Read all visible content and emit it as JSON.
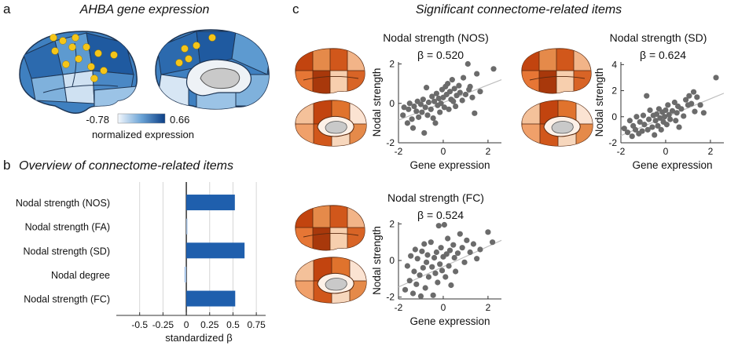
{
  "panel_a": {
    "letter": "a",
    "title": "AHBA gene expression",
    "colorbar_min": "-0.78",
    "colorbar_max": "0.66",
    "colorbar_label": "normalized expression",
    "colors": {
      "low": "#f3f7fc",
      "high": "#0c3f86",
      "dot": "#f5c518"
    }
  },
  "panel_b": {
    "letter": "b",
    "title": "Overview of connectome-related items"
  },
  "panel_c": {
    "letter": "c",
    "title": "Significant connectome-related items",
    "scatter_xlabel": "Gene expression",
    "scatter_ylabel": "Nodal strength",
    "colors": {
      "brain_high": "#c2440f",
      "brain_low": "#fbe3d2",
      "dot": "#6b6b6b",
      "fit": "#bdbdbd"
    }
  },
  "chart_data": [
    {
      "id": "overview",
      "type": "bar",
      "orientation": "horizontal",
      "categories": [
        "Nodal strength (NOS)",
        "Nodal strength (FA)",
        "Nodal strength (SD)",
        "Nodal degree",
        "Nodal strength (FC)"
      ],
      "values": [
        0.52,
        0.003,
        0.624,
        -0.02,
        0.524
      ],
      "xlabel": "standardized β",
      "xlim": [
        -0.75,
        0.85
      ],
      "xticks": [
        "-0.5",
        "-0.25",
        "0",
        "0.25",
        "0.5",
        "0.75"
      ],
      "grid": "vertical",
      "color": "#1f5fad"
    },
    {
      "id": "nos",
      "type": "scatter",
      "title": "Nodal strength (NOS)",
      "annotation": "β = 0.520",
      "xlabel": "Gene expression",
      "ylabel": "Nodal strength",
      "xlim": [
        -2,
        2.6
      ],
      "ylim": [
        -2,
        2.1
      ],
      "xticks": [
        "-2",
        "0",
        "2"
      ],
      "yticks": [
        "-2",
        "0",
        "2"
      ],
      "fit": [
        [
          -2,
          -0.85
        ],
        [
          2.6,
          1.2
        ]
      ],
      "points": [
        [
          -1.8,
          -0.6
        ],
        [
          -1.75,
          -0.2
        ],
        [
          -1.6,
          -1.0
        ],
        [
          -1.55,
          -0.3
        ],
        [
          -1.5,
          0.0
        ],
        [
          -1.4,
          -0.8
        ],
        [
          -1.35,
          -1.25
        ],
        [
          -1.3,
          -0.15
        ],
        [
          -1.2,
          -0.4
        ],
        [
          -1.15,
          0.1
        ],
        [
          -1.1,
          -0.7
        ],
        [
          -1.0,
          -0.05
        ],
        [
          -0.95,
          -0.45
        ],
        [
          -0.9,
          0.2
        ],
        [
          -0.85,
          -1.5
        ],
        [
          -0.8,
          -0.2
        ],
        [
          -0.75,
          0.8
        ],
        [
          -0.7,
          -0.6
        ],
        [
          -0.65,
          0.05
        ],
        [
          -0.55,
          -0.3
        ],
        [
          -0.5,
          0.35
        ],
        [
          -0.45,
          -0.75
        ],
        [
          -0.4,
          0.1
        ],
        [
          -0.35,
          -1.0
        ],
        [
          -0.3,
          0.5
        ],
        [
          -0.25,
          -0.1
        ],
        [
          -0.2,
          0.25
        ],
        [
          -0.15,
          -0.45
        ],
        [
          -0.1,
          0.0
        ],
        [
          -0.05,
          0.7
        ],
        [
          0.0,
          0.3
        ],
        [
          0.05,
          -0.2
        ],
        [
          0.1,
          0.85
        ],
        [
          0.15,
          0.45
        ],
        [
          0.2,
          1.0
        ],
        [
          0.25,
          -0.3
        ],
        [
          0.3,
          0.6
        ],
        [
          0.35,
          0.2
        ],
        [
          0.4,
          1.2
        ],
        [
          0.45,
          0.1
        ],
        [
          0.5,
          0.75
        ],
        [
          0.55,
          -0.15
        ],
        [
          0.6,
          0.4
        ],
        [
          0.7,
          0.9
        ],
        [
          0.75,
          0.55
        ],
        [
          0.85,
          0.15
        ],
        [
          0.9,
          1.3
        ],
        [
          1.0,
          0.45
        ],
        [
          1.1,
          2.0
        ],
        [
          1.15,
          0.7
        ],
        [
          1.2,
          0.85
        ],
        [
          1.3,
          0.3
        ],
        [
          1.4,
          -0.5
        ],
        [
          1.5,
          1.5
        ],
        [
          1.65,
          0.6
        ],
        [
          2.25,
          1.75
        ]
      ]
    },
    {
      "id": "sd",
      "type": "scatter",
      "title": "Nodal strength (SD)",
      "annotation": "β = 0.624",
      "xlabel": "Gene expression",
      "ylabel": "Nodal strength",
      "xlim": [
        -2,
        2.6
      ],
      "ylim": [
        -2,
        4.2
      ],
      "xticks": [
        "-2",
        "0",
        "2"
      ],
      "yticks": [
        "-2",
        "0",
        "2",
        "4"
      ],
      "fit": [
        [
          -2,
          -1.45
        ],
        [
          2.6,
          1.8
        ]
      ],
      "points": [
        [
          -1.85,
          -0.9
        ],
        [
          -1.7,
          -1.2
        ],
        [
          -1.6,
          -0.3
        ],
        [
          -1.5,
          -1.5
        ],
        [
          -1.45,
          -0.7
        ],
        [
          -1.35,
          -1.0
        ],
        [
          -1.3,
          0.0
        ],
        [
          -1.2,
          -1.3
        ],
        [
          -1.15,
          -0.4
        ],
        [
          -1.05,
          -1.1
        ],
        [
          -1.0,
          0.1
        ],
        [
          -0.95,
          -0.6
        ],
        [
          -0.85,
          1.6
        ],
        [
          -0.8,
          -1.0
        ],
        [
          -0.75,
          -0.2
        ],
        [
          -0.7,
          0.5
        ],
        [
          -0.6,
          -0.8
        ],
        [
          -0.55,
          0.1
        ],
        [
          -0.5,
          -1.4
        ],
        [
          -0.45,
          -0.3
        ],
        [
          -0.4,
          0.2
        ],
        [
          -0.35,
          -0.7
        ],
        [
          -0.3,
          0.6
        ],
        [
          -0.25,
          -0.1
        ],
        [
          -0.2,
          -1.0
        ],
        [
          -0.15,
          0.35
        ],
        [
          -0.1,
          -0.4
        ],
        [
          -0.05,
          0.0
        ],
        [
          0.0,
          0.5
        ],
        [
          0.05,
          -0.6
        ],
        [
          0.1,
          0.9
        ],
        [
          0.15,
          0.15
        ],
        [
          0.2,
          -0.2
        ],
        [
          0.3,
          0.45
        ],
        [
          0.4,
          1.1
        ],
        [
          0.45,
          -0.3
        ],
        [
          0.5,
          0.3
        ],
        [
          0.55,
          0.8
        ],
        [
          0.6,
          -0.8
        ],
        [
          0.7,
          0.6
        ],
        [
          0.8,
          0.05
        ],
        [
          0.9,
          1.3
        ],
        [
          1.0,
          0.9
        ],
        [
          1.05,
          1.6
        ],
        [
          1.15,
          1.0
        ],
        [
          1.25,
          1.9
        ],
        [
          1.3,
          0.4
        ],
        [
          1.4,
          1.5
        ],
        [
          1.55,
          0.9
        ],
        [
          1.7,
          0.3
        ],
        [
          2.25,
          3.0
        ]
      ]
    },
    {
      "id": "fc",
      "type": "scatter",
      "title": "Nodal strength (FC)",
      "annotation": "β = 0.524",
      "xlabel": "Gene expression",
      "ylabel": "Nodal strength",
      "xlim": [
        -2,
        2.6
      ],
      "ylim": [
        -2.1,
        2.1
      ],
      "xticks": [
        "-2",
        "0",
        "2"
      ],
      "yticks": [
        "-2",
        "0",
        "2"
      ],
      "fit": [
        [
          -2,
          -1.45
        ],
        [
          2.6,
          1.1
        ]
      ],
      "points": [
        [
          -1.7,
          -1.6
        ],
        [
          -1.6,
          -0.3
        ],
        [
          -1.5,
          -1.1
        ],
        [
          -1.45,
          0.25
        ],
        [
          -1.35,
          -1.8
        ],
        [
          -1.3,
          -0.6
        ],
        [
          -1.25,
          0.6
        ],
        [
          -1.2,
          -1.3
        ],
        [
          -1.15,
          0.1
        ],
        [
          -1.05,
          -0.8
        ],
        [
          -1.0,
          -1.95
        ],
        [
          -0.95,
          0.5
        ],
        [
          -0.9,
          -0.4
        ],
        [
          -0.85,
          0.9
        ],
        [
          -0.8,
          -1.5
        ],
        [
          -0.75,
          -0.1
        ],
        [
          -0.7,
          0.3
        ],
        [
          -0.65,
          -0.9
        ],
        [
          -0.55,
          1.0
        ],
        [
          -0.5,
          -0.35
        ],
        [
          -0.45,
          -1.9
        ],
        [
          -0.4,
          0.15
        ],
        [
          -0.35,
          -0.7
        ],
        [
          -0.3,
          0.45
        ],
        [
          -0.25,
          -1.2
        ],
        [
          -0.2,
          1.9
        ],
        [
          -0.15,
          -0.2
        ],
        [
          -0.1,
          0.7
        ],
        [
          -0.05,
          -0.55
        ],
        [
          0.0,
          0.2
        ],
        [
          0.05,
          1.95
        ],
        [
          0.1,
          -0.9
        ],
        [
          0.15,
          0.35
        ],
        [
          0.2,
          1.2
        ],
        [
          0.25,
          -0.3
        ],
        [
          0.3,
          0.55
        ],
        [
          0.35,
          -1.35
        ],
        [
          0.45,
          0.85
        ],
        [
          0.5,
          0.15
        ],
        [
          0.55,
          -0.6
        ],
        [
          0.65,
          0.4
        ],
        [
          0.75,
          1.45
        ],
        [
          0.85,
          0.7
        ],
        [
          0.95,
          -0.1
        ],
        [
          1.05,
          1.1
        ],
        [
          1.2,
          0.45
        ],
        [
          1.35,
          0.9
        ],
        [
          1.5,
          0.1
        ],
        [
          1.65,
          0.6
        ],
        [
          2.0,
          1.55
        ],
        [
          2.2,
          1.0
        ]
      ]
    }
  ]
}
